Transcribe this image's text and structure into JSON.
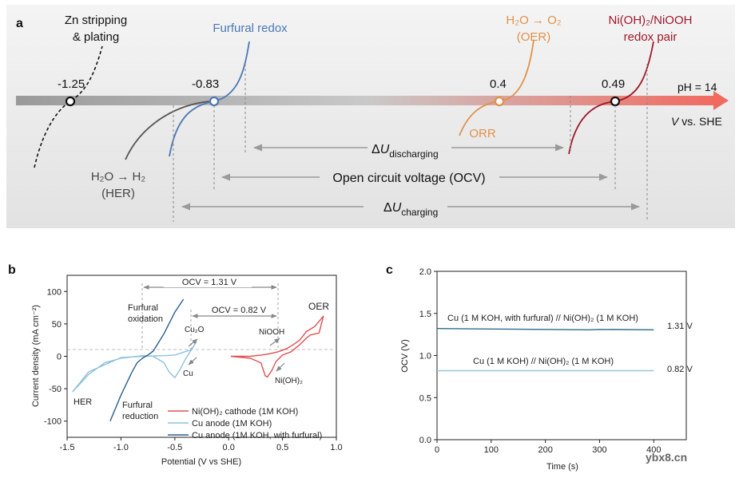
{
  "panel_a": {
    "letter": "a",
    "zn": {
      "label1": "Zn stripping",
      "label2": "& plating",
      "value": "-1.25"
    },
    "furfural": {
      "label": "Furfural redox",
      "value": "-0.83"
    },
    "her": {
      "label1": "H₂O → H₂",
      "label2": "(HER)"
    },
    "oer": {
      "label1": "H₂O → O₂",
      "label2": "(OER)",
      "value": "0.4"
    },
    "orr": {
      "label": "ORR"
    },
    "ni": {
      "label1": "Ni(OH)₂/NiOOH",
      "label2": "redox pair",
      "value": "0.49"
    },
    "ph": "pH = 14",
    "axis_v": "V",
    "axis_rest": " vs. SHE",
    "d_dis": {
      "delta": "Δ",
      "u": "U",
      "sub": "discharging"
    },
    "ocv": "Open circuit voltage (OCV)",
    "d_chg": {
      "delta": "Δ",
      "u": "U",
      "sub": "charging"
    },
    "colors": {
      "zn": "#111111",
      "furfural": "#4a78b5",
      "her": "#555555",
      "oer": "#e0914a",
      "ni": "#a0182a"
    }
  },
  "panel_b": {
    "letter": "b",
    "ocv_top": "OCV = 1.31 V",
    "ocv_bottom": "OCV = 0.82 V",
    "labels": {
      "furfural_ox1": "Furfural",
      "furfural_ox2": "oxidation",
      "furfural_red1": "Furfural",
      "furfural_red2": "reduction",
      "her": "HER",
      "oer": "OER",
      "cu2o": "Cu₂O",
      "cu": "Cu",
      "niooh": "NiOOH",
      "nioh2": "Ni(OH)₂"
    },
    "legend": [
      {
        "label": "Ni(OH)₂ cathode (1M KOH)",
        "color": "#e05050"
      },
      {
        "label": "Cu anode (1M KOH)",
        "color": "#8ec1dc"
      },
      {
        "label": "Cu anode (1M KOH, with furfural)",
        "color": "#2c5d8f"
      }
    ]
  },
  "panel_c": {
    "letter": "c",
    "top_label": "Cu  (1 M KOH, with furfural) // Ni(OH)₂ (1 M KOH)",
    "top_value": "1.31 V",
    "bottom_label": "Cu (1 M KOH) // Ni(OH)₂ (1 M KOH)",
    "bottom_value": "0.82 V"
  },
  "watermark": "ybx8.cn",
  "chart_data": [
    {
      "type": "line",
      "panel": "b",
      "title": "",
      "xlabel": "Potential (V vs SHE)",
      "ylabel": "Current density (mA cm⁻²)",
      "xlim": [
        -1.5,
        1.0
      ],
      "ylim": [
        -125,
        125
      ],
      "xticks": [
        -1.5,
        -1.0,
        -0.5,
        0.0,
        0.5,
        1.0
      ],
      "xtick_labels": [
        "-1.5",
        "-1.0",
        "-0.5",
        "0.0",
        "0.5",
        "1.0"
      ],
      "yticks": [
        -100,
        -50,
        0,
        50,
        100
      ],
      "ytick_labels": [
        "-100",
        "-50",
        "0",
        "50",
        "100"
      ],
      "series": [
        {
          "name": "Ni(OH)₂ cathode (1M KOH)",
          "color": "#e05050",
          "x": [
            0.02,
            0.2,
            0.3,
            0.38,
            0.46,
            0.54,
            0.6,
            0.66,
            0.72,
            0.8,
            0.88,
            0.84,
            0.76,
            0.72,
            0.66,
            0.58,
            0.5,
            0.44,
            0.4,
            0.36,
            0.34,
            0.3,
            0.2,
            0.02
          ],
          "y": [
            0,
            0,
            2,
            4,
            7,
            12,
            18,
            25,
            38,
            46,
            62,
            36,
            33,
            28,
            18,
            7,
            2,
            -8,
            -22,
            -32,
            -30,
            -10,
            -3,
            0
          ]
        },
        {
          "name": "Cu anode (1M KOH)",
          "color": "#8ec1dc",
          "x": [
            -1.45,
            -1.3,
            -1.15,
            -1.0,
            -0.9,
            -0.8,
            -0.7,
            -0.6,
            -0.55,
            -0.5,
            -0.45,
            -0.4,
            -0.3,
            -0.35,
            -0.5,
            -0.6,
            -0.8,
            -1.0,
            -1.3,
            -1.45
          ],
          "y": [
            -55,
            -28,
            -10,
            -3,
            -1,
            1,
            0,
            -10,
            -25,
            -33,
            -20,
            -4,
            22,
            10,
            2,
            1,
            0,
            -2,
            -24,
            -55
          ]
        },
        {
          "name": "Cu anode (1M KOH, with furfural)",
          "color": "#2c5d8f",
          "x": [
            -1.1,
            -1.0,
            -0.9,
            -0.85,
            -0.8,
            -0.75,
            -0.7,
            -0.6,
            -0.5,
            -0.42
          ],
          "y": [
            -100,
            -60,
            -25,
            -10,
            -3,
            2,
            8,
            35,
            68,
            88
          ]
        }
      ]
    },
    {
      "type": "line",
      "panel": "c",
      "title": "",
      "xlabel": "Time (s)",
      "ylabel": "OCV (V)",
      "xlim": [
        0,
        460
      ],
      "ylim": [
        0.0,
        2.0
      ],
      "xticks": [
        0,
        100,
        200,
        300,
        400
      ],
      "xtick_labels": [
        "0",
        "100",
        "200",
        "300",
        "400"
      ],
      "yticks": [
        0.0,
        0.5,
        1.0,
        1.5,
        2.0
      ],
      "ytick_labels": [
        "0.0",
        "0.5",
        "1.0",
        "1.5",
        "2.0"
      ],
      "series": [
        {
          "name": "Cu (1 M KOH, with furfural) // Ni(OH)₂ (1 M KOH)",
          "color": "#2a6c8a",
          "x": [
            0,
            100,
            200,
            280,
            300,
            400
          ],
          "y": [
            1.32,
            1.315,
            1.31,
            1.305,
            1.31,
            1.305
          ]
        },
        {
          "name": "Cu (1 M KOH) // Ni(OH)₂ (1 M KOH)",
          "color": "#9cc3d9",
          "x": [
            0,
            100,
            200,
            300,
            400
          ],
          "y": [
            0.82,
            0.82,
            0.82,
            0.82,
            0.82
          ]
        }
      ]
    }
  ]
}
